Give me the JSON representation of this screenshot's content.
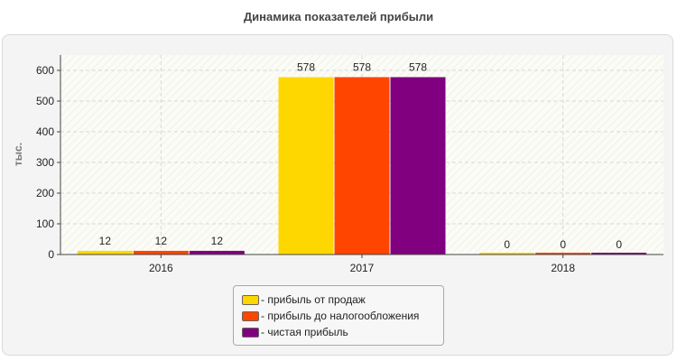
{
  "chart_data": {
    "type": "bar",
    "title": "Динамика показателей прибыли",
    "ylabel": "тыс.",
    "xlabel": "",
    "categories": [
      "2016",
      "2017",
      "2018"
    ],
    "series": [
      {
        "name": "прибыль от продаж",
        "values": [
          12,
          578,
          0
        ],
        "color": "#FFD700"
      },
      {
        "name": "прибыль до налогообложения",
        "values": [
          12,
          578,
          0
        ],
        "color": "#FF4500"
      },
      {
        "name": "чистая прибыль",
        "values": [
          12,
          578,
          0
        ],
        "color": "#800080"
      }
    ],
    "ylim": [
      0,
      650
    ],
    "yticks": [
      0,
      100,
      200,
      300,
      400,
      500,
      600
    ],
    "grid": true,
    "legend_position": "bottom"
  },
  "legend_prefix": "- "
}
